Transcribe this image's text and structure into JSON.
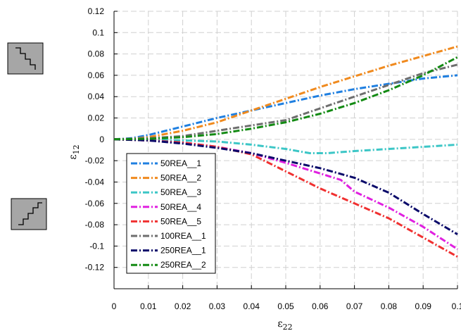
{
  "chart_data": {
    "type": "line",
    "xlabel": "ε22",
    "ylabel": "ε12",
    "xlim": [
      0,
      0.1
    ],
    "ylim": [
      -0.14,
      0.12
    ],
    "xticks": [
      "0",
      "0.01",
      "0.02",
      "0.03",
      "0.04",
      "0.05",
      "0.06",
      "0.07",
      "0.08",
      "0.09",
      "0.1"
    ],
    "yticks": [
      "0.12",
      "0.1",
      "0.08",
      "0.06",
      "0.04",
      "0.02",
      "0",
      "-0.02",
      "-0.04",
      "-0.06",
      "-0.08",
      "-0.1",
      "-0.12"
    ],
    "grid": true,
    "legend_position": "lower-left",
    "series": [
      {
        "name": "50REA__1",
        "color": "#1f7fe0",
        "x": [
          0,
          0.005,
          0.01,
          0.02,
          0.03,
          0.04,
          0.05,
          0.06,
          0.07,
          0.08,
          0.09,
          0.1
        ],
        "y": [
          0,
          0.001,
          0.004,
          0.012,
          0.02,
          0.027,
          0.034,
          0.041,
          0.047,
          0.052,
          0.057,
          0.06
        ]
      },
      {
        "name": "50REA__2",
        "color": "#f08a1e",
        "x": [
          0,
          0.005,
          0.01,
          0.02,
          0.03,
          0.04,
          0.05,
          0.06,
          0.07,
          0.08,
          0.09,
          0.1
        ],
        "y": [
          0,
          0.0005,
          0.002,
          0.008,
          0.016,
          0.027,
          0.038,
          0.049,
          0.059,
          0.069,
          0.078,
          0.087
        ]
      },
      {
        "name": "50REA__3",
        "color": "#3cc6c6",
        "x": [
          0,
          0.01,
          0.02,
          0.03,
          0.04,
          0.05,
          0.057,
          0.062,
          0.07,
          0.08,
          0.09,
          0.1
        ],
        "y": [
          0,
          -0.0005,
          -0.001,
          -0.002,
          -0.005,
          -0.009,
          -0.013,
          -0.013,
          -0.011,
          -0.009,
          -0.007,
          -0.005
        ]
      },
      {
        "name": "50REA__4",
        "color": "#e020e0",
        "x": [
          0,
          0.01,
          0.02,
          0.03,
          0.04,
          0.05,
          0.06,
          0.066,
          0.07,
          0.08,
          0.09,
          0.1
        ],
        "y": [
          0,
          -0.001,
          -0.003,
          -0.007,
          -0.013,
          -0.022,
          -0.032,
          -0.038,
          -0.049,
          -0.064,
          -0.082,
          -0.103
        ]
      },
      {
        "name": "50REA__5",
        "color": "#f03030",
        "x": [
          0,
          0.01,
          0.02,
          0.03,
          0.04,
          0.05,
          0.06,
          0.07,
          0.08,
          0.09,
          0.1
        ],
        "y": [
          0,
          -0.001,
          -0.003,
          -0.007,
          -0.014,
          -0.03,
          -0.046,
          -0.06,
          -0.074,
          -0.092,
          -0.11
        ]
      },
      {
        "name": "100REA__1",
        "color": "#6e6e6e",
        "x": [
          0,
          0.01,
          0.02,
          0.03,
          0.04,
          0.05,
          0.06,
          0.07,
          0.08,
          0.09,
          0.1
        ],
        "y": [
          0,
          0.001,
          0.003,
          0.008,
          0.013,
          0.018,
          0.029,
          0.04,
          0.051,
          0.062,
          0.07
        ]
      },
      {
        "name": "250REA__1",
        "color": "#0a0a6a",
        "x": [
          0,
          0.01,
          0.02,
          0.03,
          0.04,
          0.05,
          0.06,
          0.07,
          0.08,
          0.09,
          0.1
        ],
        "y": [
          0,
          -0.001,
          -0.004,
          -0.008,
          -0.013,
          -0.02,
          -0.027,
          -0.036,
          -0.05,
          -0.07,
          -0.089
        ]
      },
      {
        "name": "250REA__2",
        "color": "#138a13",
        "x": [
          0,
          0.01,
          0.02,
          0.03,
          0.04,
          0.05,
          0.06,
          0.07,
          0.08,
          0.09,
          0.1
        ],
        "y": [
          0,
          0.0005,
          0.002,
          0.005,
          0.01,
          0.016,
          0.024,
          0.034,
          0.046,
          0.06,
          0.077
        ]
      }
    ]
  },
  "icons": [
    "staircase-down-icon",
    "staircase-up-icon"
  ]
}
